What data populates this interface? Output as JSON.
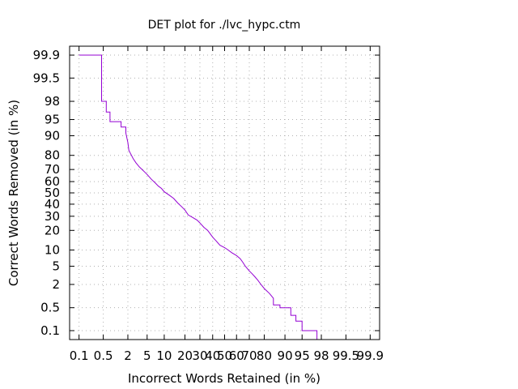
{
  "chart_data": {
    "type": "line",
    "title": "DET plot for ./lvc_hypc.ctm",
    "xlabel": "Incorrect Words Retained (in %)",
    "ylabel": "Correct Words Removed (in %)",
    "x_scale": "probit",
    "y_scale": "probit",
    "xlim": [
      0.05,
      99.95
    ],
    "ylim": [
      0.05,
      99.95
    ],
    "grid": true,
    "x_ticks": [
      0.1,
      0.5,
      2,
      5,
      10,
      20,
      30,
      40,
      50,
      60,
      70,
      80,
      90,
      95,
      98,
      99.5,
      99.9
    ],
    "y_ticks": [
      0.1,
      0.5,
      2,
      5,
      10,
      20,
      30,
      40,
      50,
      60,
      70,
      80,
      90,
      95,
      98,
      99.5,
      99.9
    ],
    "x_tick_labels": [
      "0.1",
      "0.5",
      "2",
      "5",
      "10",
      "20",
      "30",
      "40",
      "50",
      "60",
      "70",
      "80",
      "90",
      "95",
      "98",
      "99.5",
      "99.9"
    ],
    "y_tick_labels": [
      "0.1",
      "0.5",
      "2",
      "5",
      "10",
      "20",
      "30",
      "40",
      "50",
      "60",
      "70",
      "80",
      "90",
      "95",
      "98",
      "99.5",
      "99.9"
    ],
    "series": [
      {
        "color": "#9400d3",
        "x": [
          0.1,
          0.45,
          0.45,
          0.6,
          0.6,
          0.75,
          0.75,
          1.4,
          1.4,
          1.8,
          1.8,
          2.0,
          2.1,
          2.3,
          2.6,
          3.0,
          3.5,
          4.0,
          4.5,
          5.0,
          6.0,
          7.0,
          8.0,
          9.0,
          10.0,
          12.0,
          14.0,
          16.0,
          18.0,
          20.0,
          22.0,
          25.0,
          28.0,
          30.0,
          33.0,
          36.0,
          38.0,
          40.0,
          43.0,
          46.0,
          50.0,
          53.0,
          56.0,
          60.0,
          63.0,
          65.0,
          67.0,
          70.0,
          72.0,
          74.0,
          76.0,
          78.0,
          80.0,
          83.0,
          85.0,
          85.0,
          88.0,
          88.0,
          92.0,
          92.0,
          93.5,
          93.5,
          95.0,
          95.0,
          97.5,
          97.5
        ],
        "y": [
          99.9,
          99.9,
          98.0,
          98.0,
          96.5,
          96.5,
          94.5,
          94.5,
          93.0,
          93.0,
          91.0,
          87.0,
          83.0,
          81.0,
          78.0,
          75.0,
          72.0,
          70.0,
          68.0,
          66.0,
          62.0,
          59.0,
          56.0,
          54.0,
          51.0,
          48.0,
          45.0,
          41.0,
          38.0,
          35.0,
          31.0,
          29.0,
          27.0,
          25.0,
          22.0,
          20.0,
          18.0,
          16.0,
          14.0,
          12.0,
          11.0,
          10.0,
          9.0,
          8.0,
          7.0,
          6.0,
          5.0,
          4.0,
          3.5,
          3.0,
          2.5,
          2.0,
          1.6,
          1.2,
          0.9,
          0.6,
          0.6,
          0.5,
          0.5,
          0.3,
          0.3,
          0.2,
          0.2,
          0.1,
          0.1,
          0.05
        ]
      }
    ]
  }
}
